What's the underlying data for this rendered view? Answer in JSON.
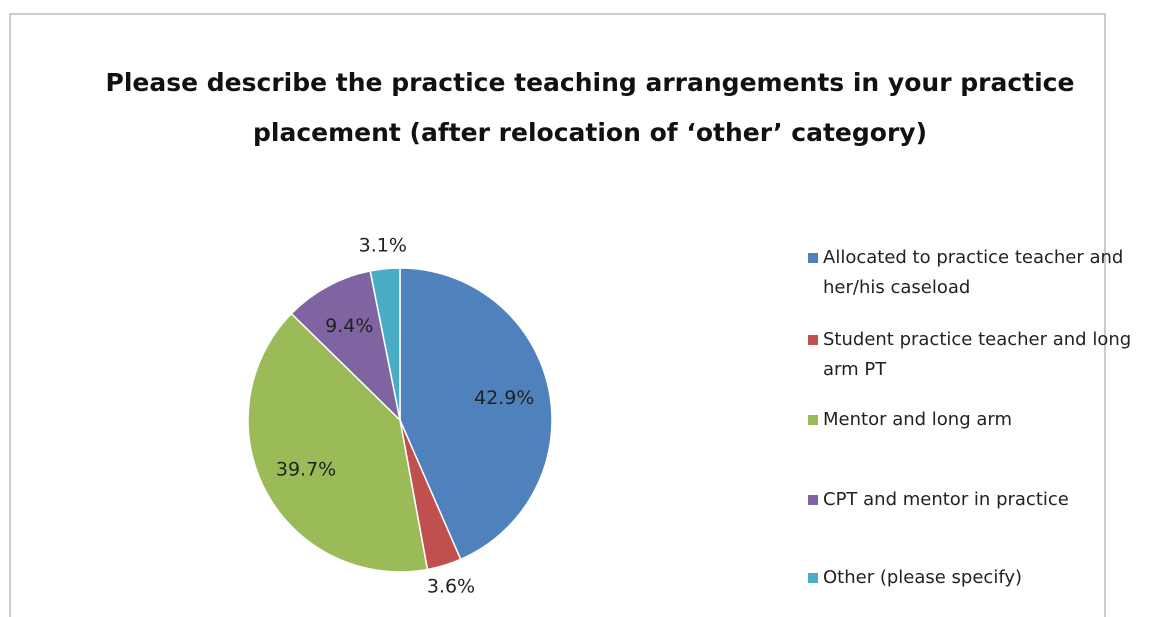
{
  "chart_data": {
    "type": "pie",
    "title": "Please describe the practice teaching arrangements in your practice placement (after relocation of ‘other’ category)",
    "categories": [
      "Allocated to practice teacher and her/his caseload",
      "Student practice teacher and long arm PT",
      "Mentor and long arm",
      "CPT and mentor in practice",
      "Other (please specify)"
    ],
    "values": [
      42.9,
      3.6,
      39.7,
      9.4,
      3.1
    ],
    "value_labels": [
      "42.9%",
      "3.6%",
      "39.7%",
      "9.4%",
      "3.1%"
    ],
    "colors": [
      "#4f81bd",
      "#c0504d",
      "#9bbb59",
      "#8064a2",
      "#4bacc6"
    ],
    "legend": "right"
  }
}
